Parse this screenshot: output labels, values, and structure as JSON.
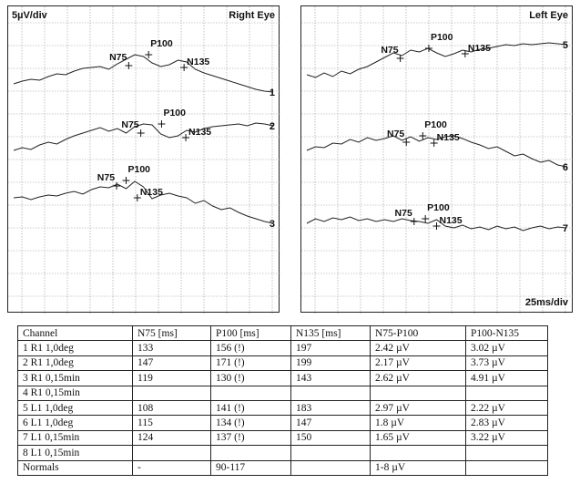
{
  "chart_data": [
    {
      "type": "line",
      "panel": "right",
      "ylabel": "5µV/div",
      "title": "Right Eye",
      "traces": [
        {
          "channel": "1",
          "x": [
            0,
            10,
            20,
            30,
            40,
            50,
            60,
            70,
            80,
            90,
            100,
            110,
            120,
            130,
            140,
            150,
            160,
            170,
            180,
            190,
            200,
            210,
            220,
            230,
            240,
            250,
            260,
            270,
            280,
            290,
            300
          ],
          "y": [
            0,
            0.3,
            0.5,
            0.4,
            0.8,
            1.1,
            1.0,
            1.4,
            1.7,
            1.8,
            1.9,
            1.6,
            2.2,
            2.7,
            3.2,
            3.0,
            2.3,
            1.9,
            2.1,
            2.6,
            2.4,
            1.6,
            1.2,
            0.9,
            0.6,
            0.3,
            0.0,
            -0.3,
            -0.6,
            -0.8,
            -0.9
          ],
          "markers": [
            {
              "label": "N75",
              "x": 133,
              "y": 2.0
            },
            {
              "label": "P100",
              "x": 156,
              "y": 3.2
            },
            {
              "label": "N135",
              "x": 197,
              "y": 1.8
            }
          ]
        },
        {
          "channel": "2",
          "x": [
            0,
            10,
            20,
            30,
            40,
            50,
            60,
            70,
            80,
            90,
            100,
            110,
            120,
            130,
            140,
            150,
            160,
            170,
            180,
            190,
            200,
            210,
            220,
            230,
            240,
            250,
            260,
            270,
            280,
            290,
            300
          ],
          "y": [
            0,
            0.3,
            0.1,
            0.6,
            0.9,
            0.7,
            1.2,
            1.6,
            1.9,
            2.2,
            2.5,
            2.1,
            2.4,
            1.9,
            2.6,
            2.9,
            2.8,
            1.8,
            1.4,
            1.6,
            2.2,
            2.0,
            2.4,
            2.6,
            2.7,
            2.8,
            2.9,
            2.7,
            3.0,
            2.9,
            2.7
          ],
          "markers": [
            {
              "label": "N75",
              "x": 147,
              "y": 1.9
            },
            {
              "label": "P100",
              "x": 171,
              "y": 2.9
            },
            {
              "label": "N135",
              "x": 199,
              "y": 1.4
            }
          ]
        },
        {
          "channel": "3",
          "x": [
            0,
            10,
            20,
            30,
            40,
            50,
            60,
            70,
            80,
            90,
            100,
            110,
            120,
            130,
            140,
            150,
            160,
            170,
            180,
            190,
            200,
            210,
            220,
            230,
            240,
            250,
            260,
            270,
            280,
            290,
            300
          ],
          "y": [
            0,
            0.1,
            -0.2,
            0.1,
            0.3,
            0.2,
            0.5,
            0.7,
            0.4,
            0.9,
            1.2,
            1.1,
            1.5,
            1.0,
            1.8,
            1.2,
            -0.1,
            0.3,
            0.5,
            0.2,
            0.0,
            -0.6,
            -0.3,
            -0.9,
            -1.3,
            -1.1,
            -1.6,
            -2.0,
            -2.3,
            -2.6,
            -2.8
          ],
          "markers": [
            {
              "label": "N75",
              "x": 119,
              "y": 1.3
            },
            {
              "label": "P100",
              "x": 130,
              "y": 1.9
            },
            {
              "label": "N135",
              "x": 143,
              "y": 0.0
            }
          ]
        }
      ]
    },
    {
      "type": "line",
      "panel": "left",
      "title": "Left Eye",
      "xlabel": "25ms/div",
      "traces": [
        {
          "channel": "5",
          "x": [
            0,
            10,
            20,
            30,
            40,
            50,
            60,
            70,
            80,
            90,
            100,
            110,
            120,
            130,
            140,
            150,
            160,
            170,
            180,
            190,
            200,
            210,
            220,
            230,
            240,
            250,
            260,
            270,
            280,
            290,
            300
          ],
          "y": [
            0,
            -0.3,
            0.2,
            -0.2,
            0.4,
            0.1,
            0.6,
            0.9,
            1.4,
            1.9,
            2.4,
            2.1,
            2.7,
            2.5,
            2.9,
            2.4,
            2.0,
            2.3,
            2.7,
            2.5,
            2.8,
            2.9,
            3.1,
            3.3,
            3.2,
            3.4,
            3.3,
            3.4,
            3.5,
            3.4,
            3.3
          ],
          "markers": [
            {
              "label": "N75",
              "x": 108,
              "y": 1.8
            },
            {
              "label": "P100",
              "x": 141,
              "y": 2.9
            },
            {
              "label": "N135",
              "x": 183,
              "y": 2.3
            }
          ]
        },
        {
          "channel": "6",
          "x": [
            0,
            10,
            20,
            30,
            40,
            50,
            60,
            70,
            80,
            90,
            100,
            110,
            120,
            130,
            140,
            150,
            160,
            170,
            180,
            190,
            200,
            210,
            220,
            230,
            240,
            250,
            260,
            270,
            280,
            290,
            300
          ],
          "y": [
            0,
            0.4,
            0.3,
            0.8,
            0.7,
            1.2,
            0.9,
            1.4,
            1.1,
            1.3,
            1.6,
            1.1,
            1.5,
            1.0,
            1.4,
            1.2,
            1.5,
            1.6,
            1.3,
            0.9,
            0.6,
            0.2,
            0.4,
            -0.1,
            -0.6,
            -0.4,
            -0.9,
            -1.3,
            -1.1,
            -1.6,
            -1.8
          ],
          "markers": [
            {
              "label": "N75",
              "x": 115,
              "y": 0.9
            },
            {
              "label": "P100",
              "x": 134,
              "y": 1.6
            },
            {
              "label": "N135",
              "x": 147,
              "y": 0.8
            }
          ]
        },
        {
          "channel": "7",
          "x": [
            0,
            10,
            20,
            30,
            40,
            50,
            60,
            70,
            80,
            90,
            100,
            110,
            120,
            130,
            140,
            150,
            160,
            170,
            180,
            190,
            200,
            210,
            220,
            230,
            240,
            250,
            260,
            270,
            280,
            290,
            300
          ],
          "y": [
            0,
            0.5,
            0.2,
            0.6,
            0.4,
            0.7,
            0.3,
            0.5,
            0.2,
            0.4,
            0.2,
            0.5,
            0.3,
            0.2,
            0.0,
            0.4,
            -0.3,
            -0.5,
            -0.2,
            -0.6,
            -0.4,
            -0.7,
            -0.3,
            -0.6,
            -0.4,
            -0.8,
            -0.5,
            -0.3,
            -0.6,
            -0.4,
            -0.5
          ],
          "markers": [
            {
              "label": "N75",
              "x": 124,
              "y": 0.2
            },
            {
              "label": "P100",
              "x": 137,
              "y": 0.5
            },
            {
              "label": "N135",
              "x": 150,
              "y": -0.3
            }
          ]
        }
      ]
    }
  ],
  "table": {
    "headers": [
      "Channel",
      "N75 [ms]",
      "P100 [ms]",
      "N135 [ms]",
      "N75-P100",
      "P100-N135"
    ],
    "rows": [
      [
        "1 R1 1,0deg",
        "133",
        "156 (!)",
        "197",
        "2.42 µV",
        "3.02 µV"
      ],
      [
        "2 R1 1,0deg",
        "147",
        "171 (!)",
        "199",
        "2.17 µV",
        "3.73 µV"
      ],
      [
        "3 R1 0,15min",
        "119",
        "130 (!)",
        "143",
        "2.62 µV",
        "4.91 µV"
      ],
      [
        "4 R1 0,15min",
        "",
        "",
        "",
        "",
        ""
      ],
      [
        "5 L1 1,0deg",
        "108",
        "141 (!)",
        "183",
        "2.97 µV",
        "2.22 µV"
      ],
      [
        "6 L1 1,0deg",
        "115",
        "134 (!)",
        "147",
        "1.8 µV",
        "2.83 µV"
      ],
      [
        "7 L1 0,15min",
        "124",
        "137 (!)",
        "150",
        "1.65 µV",
        "3.22 µV"
      ],
      [
        "8 L1 0,15min",
        "",
        "",
        "",
        "",
        ""
      ],
      [
        "Normals",
        "-",
        "90-117",
        "",
        "1-8 µV",
        ""
      ]
    ]
  }
}
